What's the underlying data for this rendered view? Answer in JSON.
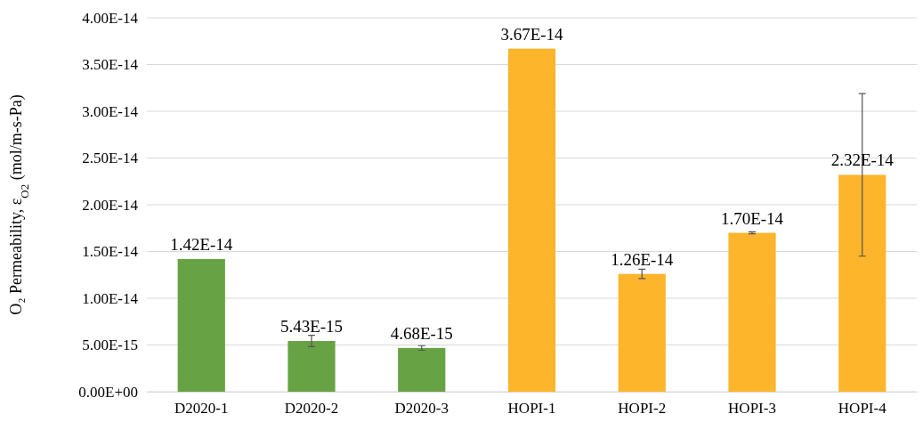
{
  "chart_data": {
    "type": "bar",
    "ylabel": "O₂ Permeability, ε$_{O2}$ (mol/m-s-Pa)",
    "categories": [
      "D2020-1",
      "D2020-2",
      "D2020-3",
      "HOPI-1",
      "HOPI-2",
      "HOPI-3",
      "HOPI-4"
    ],
    "values": [
      1.42e-14,
      5.43e-15,
      4.68e-15,
      3.67e-14,
      1.26e-14,
      1.7e-14,
      2.32e-14
    ],
    "colors": [
      "#67a244",
      "#67a244",
      "#67a244",
      "#fdb52b",
      "#fdb52b",
      "#fdb52b",
      "#fdb52b"
    ],
    "errors": [
      null,
      6e-16,
      2.5e-16,
      null,
      5e-16,
      1e-16,
      8.7e-15
    ],
    "ylim": [
      0,
      4e-14
    ],
    "yticks": [
      {
        "value": 0,
        "label": "0.00E+00"
      },
      {
        "value": 5e-15,
        "label": "5.00E-15"
      },
      {
        "value": 1e-14,
        "label": "1.00E-14"
      },
      {
        "value": 1.5e-14,
        "label": "1.50E-14"
      },
      {
        "value": 2e-14,
        "label": "2.00E-14"
      },
      {
        "value": 2.5e-14,
        "label": "2.50E-14"
      },
      {
        "value": 3e-14,
        "label": "3.00E-14"
      },
      {
        "value": 3.5e-14,
        "label": "3.50E-14"
      },
      {
        "value": 4e-14,
        "label": "4.00E-14"
      }
    ],
    "value_labels": [
      "1.42E-14",
      "5.43E-15",
      "4.68E-15",
      "3.67E-14",
      "1.26E-14",
      "1.70E-14",
      "2.32E-14"
    ],
    "grid": "y"
  }
}
